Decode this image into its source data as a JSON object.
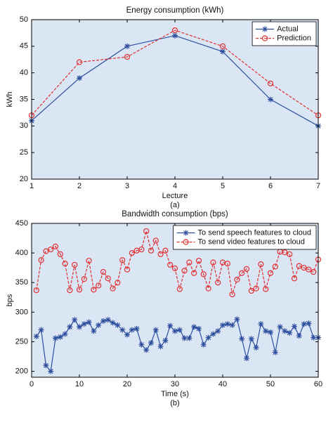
{
  "chart_data": [
    {
      "type": "line",
      "title": "Energy consumption (kWh)",
      "xlabel": "Lecture",
      "ylabel": "kWh",
      "caption": "(a)",
      "x": [
        1,
        2,
        3,
        4,
        5,
        6,
        7
      ],
      "series": [
        {
          "name": "Actual",
          "color": "#2d4f9e",
          "marker": "star",
          "dash": "solid",
          "values": [
            31,
            39,
            45,
            47,
            44,
            35,
            30
          ]
        },
        {
          "name": "Prediction",
          "color": "#e03030",
          "marker": "circle",
          "dash": "dashed",
          "values": [
            32,
            42,
            43,
            48,
            45,
            38,
            32
          ]
        }
      ],
      "xlim": [
        1,
        7
      ],
      "xticks": [
        1,
        2,
        3,
        4,
        5,
        6,
        7
      ],
      "ylim": [
        20,
        50
      ],
      "yticks": [
        20,
        25,
        30,
        35,
        40,
        45,
        50
      ],
      "legend": "northeast",
      "grid": false
    },
    {
      "type": "line",
      "title": "Bandwidth consumption (bps)",
      "xlabel": "Time (s)",
      "ylabel": "bps",
      "caption": "(b)",
      "x": [
        1,
        2,
        3,
        4,
        5,
        6,
        7,
        8,
        9,
        10,
        11,
        12,
        13,
        14,
        15,
        16,
        17,
        18,
        19,
        20,
        21,
        22,
        23,
        24,
        25,
        26,
        27,
        28,
        29,
        30,
        31,
        32,
        33,
        34,
        35,
        36,
        37,
        38,
        39,
        40,
        41,
        42,
        43,
        44,
        45,
        46,
        47,
        48,
        49,
        50,
        51,
        52,
        53,
        54,
        55,
        56,
        57,
        58,
        59,
        60
      ],
      "series": [
        {
          "name": "To send speech features to cloud",
          "color": "#2d4f9e",
          "marker": "star",
          "dash": "solid",
          "values": [
            259,
            270,
            210,
            200,
            256,
            258,
            263,
            275,
            287,
            275,
            280,
            283,
            268,
            278,
            285,
            287,
            282,
            278,
            270,
            262,
            270,
            272,
            245,
            236,
            248,
            270,
            242,
            252,
            277,
            268,
            270,
            256,
            256,
            275,
            272,
            245,
            257,
            263,
            268,
            278,
            280,
            278,
            288,
            255,
            222,
            255,
            240,
            280,
            268,
            266,
            232,
            275,
            268,
            265,
            276,
            260,
            280,
            281,
            257,
            257
          ]
        },
        {
          "name": "To send video features to cloud",
          "color": "#e03030",
          "marker": "circle",
          "dash": "dashed",
          "values": [
            337,
            388,
            403,
            406,
            411,
            398,
            382,
            337,
            380,
            338,
            356,
            387,
            338,
            345,
            368,
            357,
            340,
            350,
            388,
            372,
            400,
            404,
            406,
            437,
            404,
            421,
            398,
            404,
            380,
            374,
            339,
            370,
            384,
            366,
            387,
            364,
            340,
            384,
            350,
            384,
            382,
            330,
            355,
            366,
            373,
            336,
            340,
            381,
            339,
            366,
            377,
            402,
            401,
            398,
            357,
            378,
            375,
            372,
            368,
            389
          ]
        }
      ],
      "xlim": [
        0,
        60
      ],
      "xticks": [
        0,
        10,
        20,
        30,
        40,
        50,
        60
      ],
      "ylim": [
        190,
        450
      ],
      "yticks": [
        200,
        250,
        300,
        350,
        400,
        450
      ],
      "legend": "northeast",
      "grid": false
    }
  ]
}
